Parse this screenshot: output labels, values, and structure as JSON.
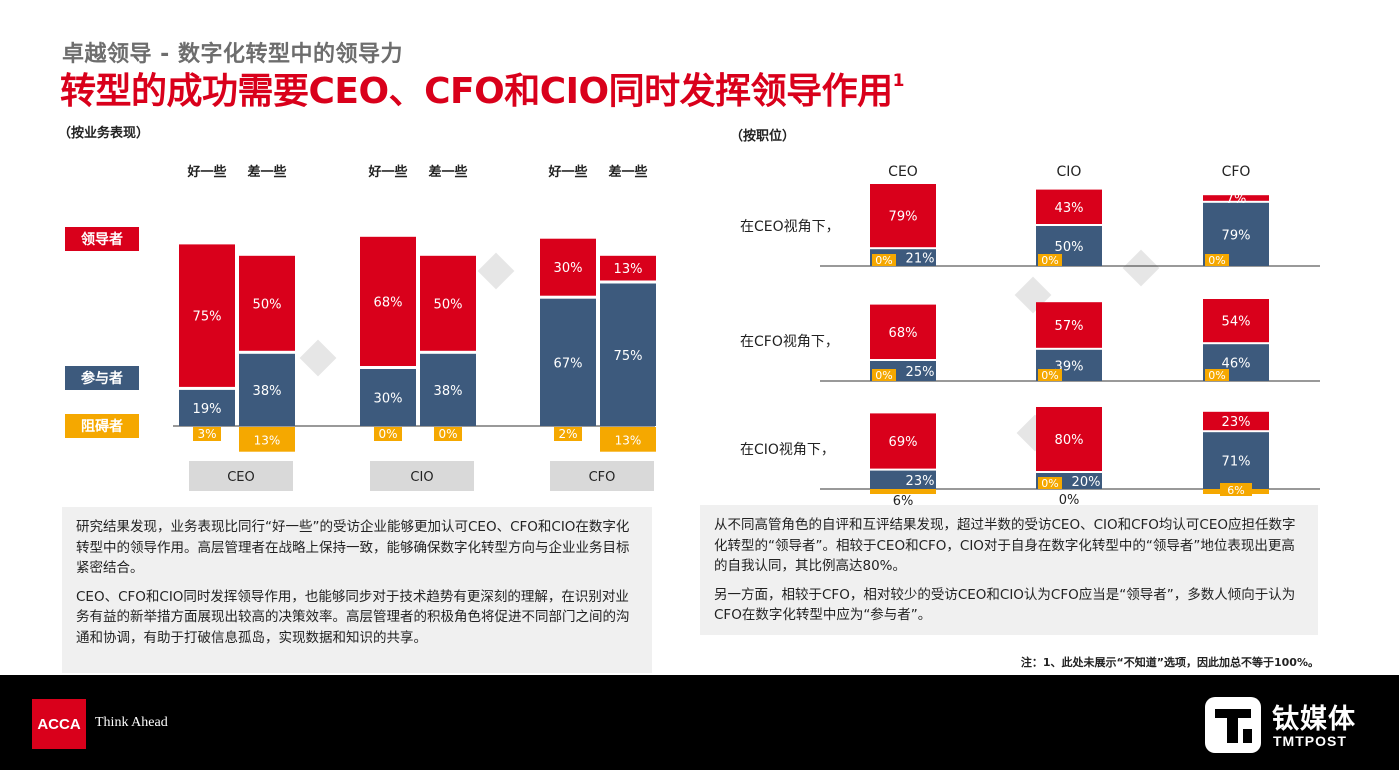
{
  "header": {
    "subtitle": "卓越领导 - 数字化转型中的领导力",
    "title": "转型的成功需要CEO、CFO和CIO同时发挥领导作用",
    "title_sup": "1"
  },
  "colors": {
    "leader": "#d9001b",
    "participant": "#3d5a7d",
    "obstacle": "#f5a800",
    "axis_box": "#d9d9d9"
  },
  "chart_data": [
    {
      "type": "bar",
      "stacked": true,
      "section_label": "（按业务表现）",
      "legend": [
        "领导者",
        "参与者",
        "阻碍者"
      ],
      "groups": [
        "CEO",
        "CIO",
        "CFO"
      ],
      "subgroups": [
        "好一些",
        "差一些"
      ],
      "series": [
        {
          "name": "领导者",
          "values": [
            [
              75,
              50
            ],
            [
              68,
              50
            ],
            [
              30,
              13
            ]
          ],
          "labels": [
            [
              "75%",
              "50%"
            ],
            [
              "68%",
              "50%"
            ],
            [
              "30%",
              "13%"
            ]
          ]
        },
        {
          "name": "参与者",
          "values": [
            [
              19,
              38
            ],
            [
              30,
              38
            ],
            [
              67,
              75
            ]
          ],
          "labels": [
            [
              "19%",
              "38%"
            ],
            [
              "30%",
              "38%"
            ],
            [
              "67%",
              "75%"
            ]
          ]
        },
        {
          "name": "阻碍者",
          "values": [
            [
              3,
              13
            ],
            [
              0,
              0
            ],
            [
              2,
              13
            ]
          ],
          "labels": [
            [
              "3%",
              "13%"
            ],
            [
              "0%",
              "0%"
            ],
            [
              "2%",
              "13%"
            ]
          ]
        }
      ]
    },
    {
      "type": "bar",
      "stacked": true,
      "section_label": "（按职位）",
      "columns": [
        "CEO",
        "CIO",
        "CFO"
      ],
      "rows": [
        "在CEO视角下，",
        "在CFO视角下，",
        "在CIO视角下，"
      ],
      "cells": [
        [
          {
            "leader": 79,
            "participant": 21,
            "obstacle": 0,
            "labels": [
              "79%",
              "21%",
              "0%"
            ]
          },
          {
            "leader": 43,
            "participant": 50,
            "obstacle": 0,
            "labels": [
              "43%",
              "50%",
              "0%"
            ]
          },
          {
            "leader": 7,
            "participant": 79,
            "obstacle": 0,
            "labels": [
              "7%",
              "79%",
              "0%"
            ]
          }
        ],
        [
          {
            "leader": 68,
            "participant": 25,
            "obstacle": 0,
            "labels": [
              "68%",
              "25%",
              "0%"
            ]
          },
          {
            "leader": 57,
            "participant": 39,
            "obstacle": 0,
            "labels": [
              "57%",
              "39%",
              "0%"
            ]
          },
          {
            "leader": 54,
            "participant": 46,
            "obstacle": 0,
            "labels": [
              "54%",
              "46%",
              "0%"
            ]
          }
        ],
        [
          {
            "leader": 69,
            "participant": 23,
            "obstacle": 6,
            "labels": [
              "69%",
              "23%",
              "6%"
            ]
          },
          {
            "leader": 80,
            "participant": 20,
            "obstacle": 0,
            "labels": [
              "80%",
              "20%",
              "0%"
            ]
          },
          {
            "leader": 23,
            "participant": 71,
            "obstacle": 6,
            "labels": [
              "23%",
              "71%",
              "6%"
            ]
          }
        ]
      ]
    }
  ],
  "text_left": [
    "研究结果发现，业务表现比同行“好一些”的受访企业能够更加认可CEO、CFO和CIO在数字化转型中的领导作用。高层管理者在战略上保持一致，能够确保数字化转型方向与企业业务目标紧密结合。",
    "CEO、CFO和CIO同时发挥领导作用，也能够同步对于技术趋势有更深刻的理解，在识别对业务有益的新举措方面展现出较高的决策效率。高层管理者的积极角色将促进不同部门之间的沟通和协调，有助于打破信息孤岛，实现数据和知识的共享。"
  ],
  "text_right": [
    "从不同高管角色的自评和互评结果发现，超过半数的受访CEO、CIO和CFO均认可CEO应担任数字化转型的“领导者”。相较于CEO和CFO，CIO对于自身在数字化转型中的“领导者”地位表现出更高的自我认同，其比例高达80%。",
    "另一方面，相较于CFO，相对较少的受访CEO和CIO认为CFO应当是“领导者”，多数人倾向于认为CFO在数字化转型中应为“参与者”。"
  ],
  "note": "注：1、此处未展示“不知道”选项，因此加总不等于100%。",
  "footer": {
    "acca_logo": "ACCA",
    "tagline": "Think Ahead",
    "tmt_cn": "钛媒体",
    "tmt_en": "TMTPOST"
  }
}
